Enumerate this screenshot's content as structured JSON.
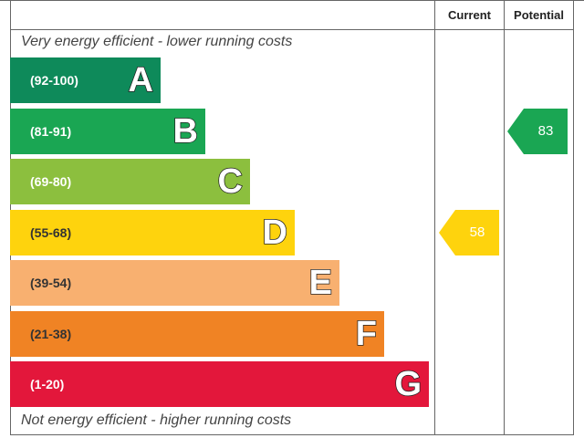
{
  "header": {
    "current_label": "Current",
    "potential_label": "Potential"
  },
  "captions": {
    "top": "Very energy efficient - lower running costs",
    "bottom": "Not energy efficient - higher running costs"
  },
  "chart_data": {
    "type": "bar",
    "categories": [
      "A",
      "B",
      "C",
      "D",
      "E",
      "F",
      "G"
    ],
    "ranges": [
      "(92-100)",
      "(81-91)",
      "(69-80)",
      "(55-68)",
      "(39-54)",
      "(21-38)",
      "(1-20)"
    ],
    "band_colors": [
      "#0e8a5a",
      "#1aa653",
      "#8cbf3e",
      "#fed30d",
      "#f8b070",
      "#f08324",
      "#e3173b"
    ],
    "current": {
      "value": 58,
      "band": "D",
      "color": "#fed30d"
    },
    "potential": {
      "value": 83,
      "band": "B",
      "color": "#1aa653"
    }
  }
}
